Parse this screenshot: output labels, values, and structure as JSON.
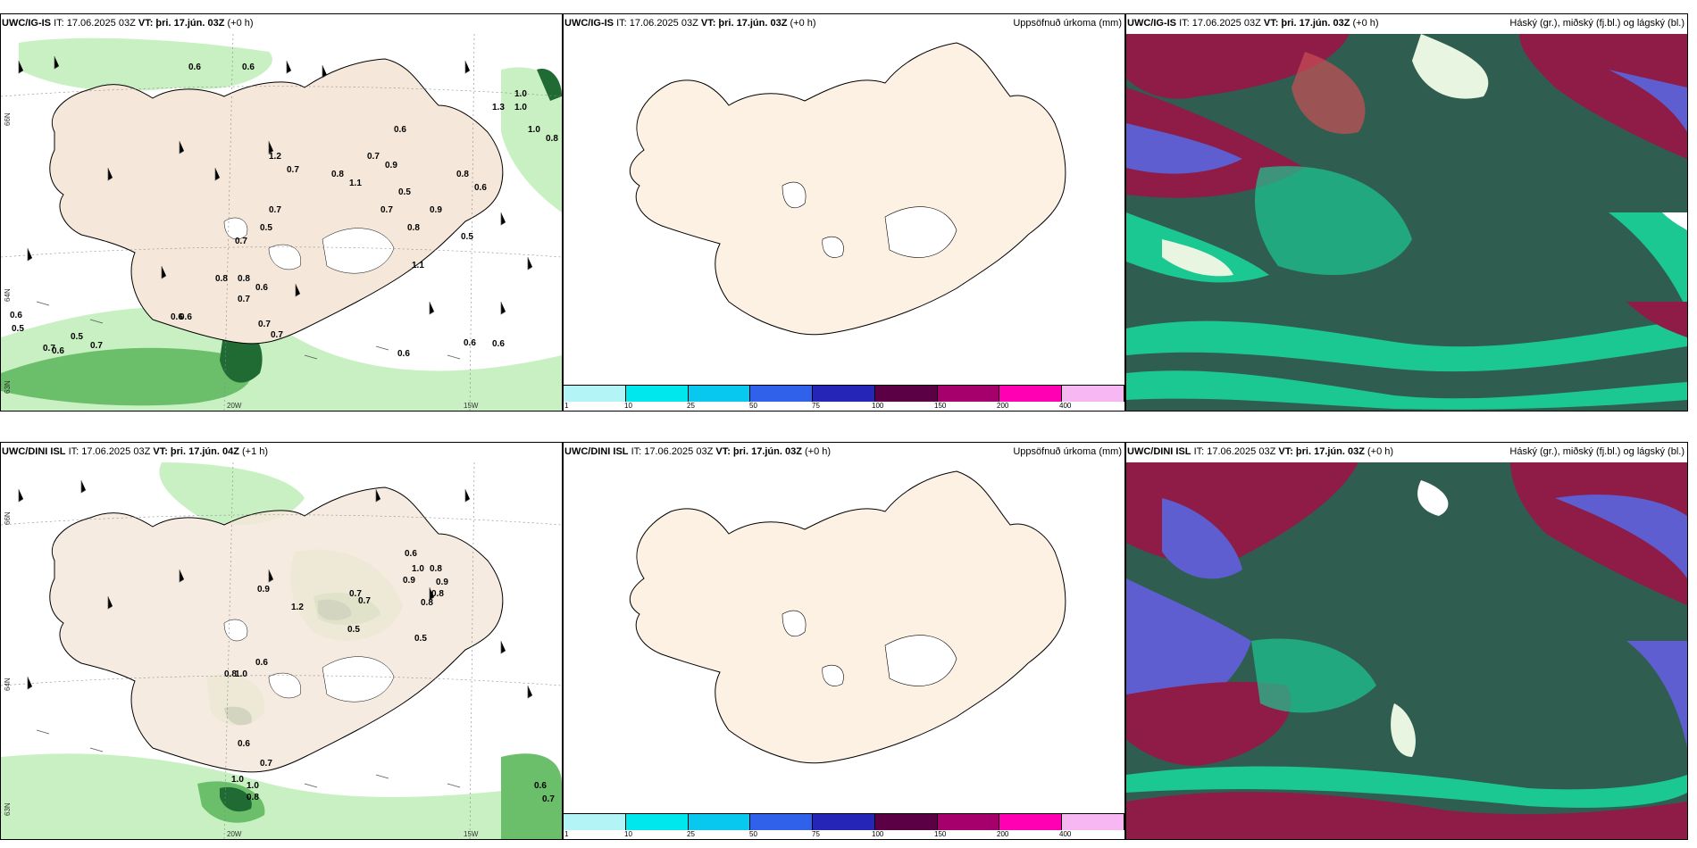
{
  "rows": [
    {
      "left": {
        "model": "UWC/IG-IS",
        "it": "IT: 17.06.2025 03Z",
        "vt": "VT: þri. 17.jún. 03Z",
        "lead": "(+0 h)",
        "lat_top": "66N",
        "lat_bot": "64N",
        "lat_low": "63N",
        "lon_left": "20W",
        "lon_right": "15W",
        "labels": [
          {
            "t": "0.6"
          },
          {
            "t": "0.6"
          },
          {
            "t": "1.0"
          },
          {
            "t": "1.3"
          },
          {
            "t": "1.0"
          },
          {
            "t": "0.6"
          },
          {
            "t": "1.0"
          },
          {
            "t": "0.8"
          },
          {
            "t": "1.2"
          },
          {
            "t": "0.7"
          },
          {
            "t": "0.7"
          },
          {
            "t": "0.8"
          },
          {
            "t": "0.9"
          },
          {
            "t": "0.8"
          },
          {
            "t": "0.6"
          },
          {
            "t": "0.5"
          },
          {
            "t": "1.1"
          },
          {
            "t": "0.7"
          },
          {
            "t": "0.5"
          },
          {
            "t": "0.7"
          },
          {
            "t": "0.9"
          },
          {
            "t": "0.7"
          },
          {
            "t": "0.8"
          },
          {
            "t": "0.5"
          },
          {
            "t": "1.1"
          },
          {
            "t": "0.8"
          },
          {
            "t": "0.8"
          },
          {
            "t": "0.6"
          },
          {
            "t": "0.7"
          },
          {
            "t": "0.6"
          },
          {
            "t": "0.6"
          },
          {
            "t": "0.6"
          },
          {
            "t": "0.5"
          },
          {
            "t": "0.5"
          },
          {
            "t": "0.7"
          },
          {
            "t": "0.6"
          },
          {
            "t": "0.7"
          },
          {
            "t": "0.7"
          },
          {
            "t": "0.7"
          },
          {
            "t": "0.6"
          },
          {
            "t": "0.6"
          },
          {
            "t": "0.6"
          }
        ]
      },
      "middle": {
        "model": "UWC/IG-IS",
        "it": "IT: 17.06.2025 03Z",
        "vt": "VT: þri. 17.jún. 03Z",
        "lead": "(+0 h)",
        "right_label": "Uppsöfnuð úrkoma (mm)"
      },
      "right": {
        "model": "UWC/IG-IS",
        "it": "IT: 17.06.2025 03Z",
        "vt": "VT: þri. 17.jún. 03Z",
        "lead": "(+0 h)",
        "right_label": "Háský (gr.), miðský (fj.bl.) og lágský (bl.)"
      }
    },
    {
      "left": {
        "model": "UWC/DINI ISL",
        "it": "IT: 17.06.2025 03Z",
        "vt": "VT: þri. 17.jún. 04Z",
        "lead": "(+1 h)",
        "lat_top": "66N",
        "lat_bot": "64N",
        "lat_low": "63N",
        "lon_left": "20W",
        "lon_right": "15W",
        "labels": [
          {
            "t": "0.6"
          },
          {
            "t": "0.9"
          },
          {
            "t": "1.0"
          },
          {
            "t": "0.8"
          },
          {
            "t": "0.9"
          },
          {
            "t": "0.8"
          },
          {
            "t": "0.9"
          },
          {
            "t": "1.2"
          },
          {
            "t": "0.7"
          },
          {
            "t": "0.7"
          },
          {
            "t": "0.8"
          },
          {
            "t": "0.5"
          },
          {
            "t": "0.5"
          },
          {
            "t": "0.6"
          },
          {
            "t": "0.8"
          },
          {
            "t": "1.0"
          },
          {
            "t": "0.6"
          },
          {
            "t": "0.7"
          },
          {
            "t": "1.0"
          },
          {
            "t": "1.0"
          },
          {
            "t": "0.8"
          },
          {
            "t": "0.6"
          },
          {
            "t": "0.7"
          }
        ]
      },
      "middle": {
        "model": "UWC/DINI ISL",
        "it": "IT: 17.06.2025 03Z",
        "vt": "VT: þri. 17.jún. 03Z",
        "lead": "(+0 h)",
        "right_label": "Uppsöfnuð úrkoma (mm)"
      },
      "right": {
        "model": "UWC/DINI ISL",
        "it": "IT: 17.06.2025 03Z",
        "vt": "VT: þri. 17.jún. 03Z",
        "lead": "(+0 h)",
        "right_label": "Háský (gr.), miðský (fj.bl.) og lágský (bl.)"
      }
    }
  ],
  "colorbar": {
    "ticks": [
      "1",
      "10",
      "25",
      "50",
      "75",
      "100",
      "150",
      "200",
      "400"
    ],
    "colors": [
      "#b3f5f7",
      "#00e8ee",
      "#08c8ef",
      "#2f61ea",
      "#2526b8",
      "#5c0046",
      "#a5006b",
      "#ff00b3",
      "#f6b7f2"
    ]
  },
  "colors": {
    "land": "#f5e8da",
    "land_plain": "#fdf1e4",
    "precip_light": "#c9f0c2",
    "precip_mid": "#6bbf6b",
    "precip_dark": "#1f6b33",
    "cloud_dark": "#2f5e51",
    "cloud_mid": "#1cc892",
    "cloud_red": "#8e1c47",
    "cloud_blue": "#5e5ed0"
  }
}
